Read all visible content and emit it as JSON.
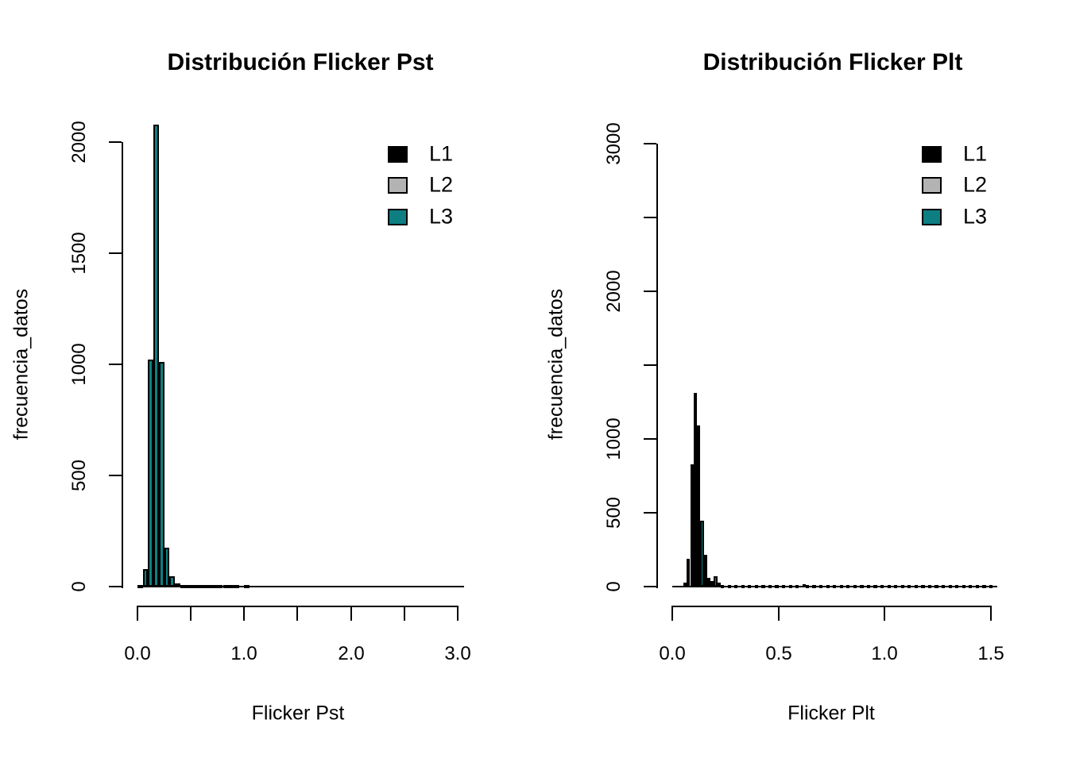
{
  "figure": {
    "background": "#ffffff",
    "text_color": "#000000",
    "bar_fill_color": "#0d7f82",
    "bar_border_color": "#000000"
  },
  "legend": {
    "items": [
      {
        "label": "L1",
        "color": "#000000"
      },
      {
        "label": "L2",
        "color": "#b3b3b3"
      },
      {
        "label": "L3",
        "color": "#0d7f82"
      }
    ]
  },
  "chart_data": [
    {
      "type": "bar",
      "title": "Distribución Flicker Pst",
      "xlabel": "Flicker Pst",
      "ylabel": "frecuencia_datos",
      "xlim": [
        0,
        3.06
      ],
      "ylim": [
        0,
        2080
      ],
      "grid": false,
      "legend": [
        "L1",
        "L2",
        "L3"
      ],
      "legend_position": "top-right",
      "x_ticks": [
        0.0,
        0.5,
        1.0,
        1.5,
        2.0,
        2.5,
        3.0
      ],
      "x_tick_labels": [
        "0.0",
        "",
        "1.0",
        "",
        "2.0",
        "",
        "3.0"
      ],
      "y_ticks": [
        0,
        500,
        1000,
        1500,
        2000
      ],
      "y_tick_labels": [
        "0",
        "500",
        "1000",
        "1500",
        "2000"
      ],
      "bin_width": 0.05,
      "baseline_extent": 3.06,
      "bars": [
        [
          0.0,
          5
        ],
        [
          0.05,
          80
        ],
        [
          0.1,
          1020
        ],
        [
          0.15,
          2080
        ],
        [
          0.2,
          1010
        ],
        [
          0.25,
          175
        ],
        [
          0.3,
          45
        ],
        [
          0.35,
          15
        ],
        [
          0.4,
          8
        ],
        [
          0.45,
          5
        ],
        [
          0.5,
          4
        ],
        [
          0.55,
          3
        ],
        [
          0.6,
          3
        ],
        [
          0.65,
          2
        ],
        [
          0.7,
          3
        ],
        [
          0.75,
          2
        ],
        [
          0.8,
          2
        ],
        [
          0.85,
          8
        ],
        [
          0.9,
          3
        ],
        [
          1.0,
          2
        ]
      ]
    },
    {
      "type": "bar",
      "title": "Distribución Flicker Plt",
      "xlabel": "Flicker Plt",
      "ylabel": "frecuencia_datos",
      "xlim": [
        0,
        1.53
      ],
      "ylim": [
        0,
        3000
      ],
      "grid": false,
      "legend": [
        "L1",
        "L2",
        "L3"
      ],
      "legend_position": "top-right",
      "x_ticks": [
        0.0,
        0.5,
        1.0,
        1.5
      ],
      "x_tick_labels": [
        "0.0",
        "0.5",
        "1.0",
        "1.5"
      ],
      "y_ticks": [
        0,
        500,
        1000,
        1500,
        2000,
        2500,
        3000
      ],
      "y_tick_labels": [
        "0",
        "500",
        "1000",
        "",
        "2000",
        "",
        "3000"
      ],
      "bin_width": 0.016,
      "baseline_extent": 1.53,
      "bars": [
        [
          0.052,
          25
        ],
        [
          0.068,
          190
        ],
        [
          0.084,
          830
        ],
        [
          0.1,
          1310
        ],
        [
          0.116,
          1090
        ],
        [
          0.132,
          445
        ],
        [
          0.148,
          215
        ],
        [
          0.164,
          60
        ],
        [
          0.18,
          35
        ],
        [
          0.196,
          70
        ],
        [
          0.212,
          25
        ],
        [
          0.228,
          12
        ],
        [
          0.26,
          8
        ],
        [
          0.292,
          6
        ],
        [
          0.324,
          10
        ],
        [
          0.356,
          6
        ],
        [
          0.388,
          8
        ],
        [
          0.42,
          10
        ],
        [
          0.452,
          6
        ],
        [
          0.484,
          8
        ],
        [
          0.516,
          6
        ],
        [
          0.548,
          10
        ],
        [
          0.58,
          8
        ],
        [
          0.612,
          18
        ],
        [
          0.628,
          12
        ],
        [
          0.66,
          8
        ],
        [
          0.692,
          6
        ],
        [
          0.724,
          8
        ],
        [
          0.756,
          6
        ],
        [
          0.788,
          8
        ],
        [
          0.82,
          6
        ],
        [
          0.852,
          8
        ],
        [
          0.884,
          6
        ],
        [
          0.916,
          10
        ],
        [
          0.948,
          6
        ],
        [
          0.98,
          8
        ],
        [
          1.012,
          6
        ],
        [
          1.044,
          8
        ],
        [
          1.076,
          6
        ],
        [
          1.108,
          8
        ],
        [
          1.14,
          10
        ],
        [
          1.172,
          6
        ],
        [
          1.204,
          8
        ],
        [
          1.236,
          6
        ],
        [
          1.268,
          8
        ],
        [
          1.3,
          6
        ],
        [
          1.332,
          8
        ],
        [
          1.364,
          6
        ],
        [
          1.396,
          8
        ],
        [
          1.428,
          6
        ],
        [
          1.46,
          8
        ],
        [
          1.492,
          10
        ]
      ]
    }
  ]
}
